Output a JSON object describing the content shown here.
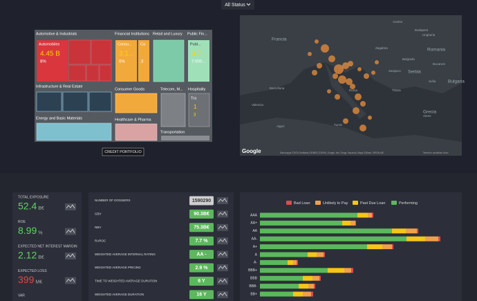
{
  "status_filter": "All Status",
  "treemap": {
    "groups": [
      "Automotive & Industrials",
      "Financial Institutions",
      "Retail and Luxury",
      "Public Fin...",
      "Infrastructure & Real Estate",
      "Consumer Goods",
      "Telecom, M...",
      "Hospitality",
      "Energy and Basic Materials",
      "Healthcare & Pharma",
      "Transportation"
    ],
    "tiles": [
      {
        "name": "Automobiles",
        "value": "4.45 B",
        "share": "8%"
      },
      {
        "name": "Consu...",
        "value": "3.1...",
        "share": "6%"
      },
      {
        "name": "Ca",
        "value": "3"
      },
      {
        "name": "Publ...",
        "value": "3.7...",
        "share": "7.000..."
      },
      {
        "name": "Tra",
        "value": "1",
        "share": "3"
      }
    ]
  },
  "button": "CREDIT PORTFOLIO",
  "map": {
    "labels": [
      "Francia",
      "Austria",
      "Ungheria",
      "Budapest",
      "Romania",
      "Bucarest",
      "Zagabria",
      "Belgrado",
      "Serbia",
      "Sarajevo",
      "Bulgaria",
      "Sofia",
      "Barcellona",
      "Roma",
      "Tirana",
      "Valencia",
      "Algeri",
      "Tunisi",
      "Grecia",
      "Atene"
    ],
    "logo": "Google",
    "attribution": "Dati mappa ©2020 GeoBasis-DE/BKG (©2009), Google, Inst. Geogr. Nacional, Mapa GISrael, ORION-ME",
    "terms": "Termini e condizioni d'uso"
  },
  "kpis": [
    {
      "label": "TOTAL EXPOSURE",
      "value": 52.4,
      "unit": "B€",
      "color": "#5fd35f"
    },
    {
      "label": "ROE",
      "value": 8.99,
      "unit": "%",
      "color": "#5fd35f"
    },
    {
      "label": "EXPECTED NET INTEREST MARGIN",
      "value": 2.12,
      "unit": "B€",
      "color": "#5fd35f"
    },
    {
      "label": "EXPECTED LOSS",
      "value": 399,
      "unit": "M€",
      "color": "#e04848"
    },
    {
      "label": "VAR"
    }
  ],
  "metrics": [
    {
      "label": "NUMBER OF DOSSIERS",
      "value": "1590290"
    },
    {
      "label": "GBV",
      "value": "90.3B€"
    },
    {
      "label": "NBV",
      "value": "75.3B€"
    },
    {
      "label": "RAROC",
      "value": "7.7 %"
    },
    {
      "label": "WEIGHTED AVERAGE INTERNAL RATING",
      "value": "AA -"
    },
    {
      "label": "WEIGHTED AVERAGE PRICING",
      "value": "2.9 %"
    },
    {
      "label": "TIME TO WEIGHTED AVERAGE DURATION",
      "value": "6 Y"
    },
    {
      "label": "WEIGHTED AVERAGE DURATION",
      "value": "16 Y"
    }
  ],
  "chart_data": {
    "type": "bar",
    "orientation": "horizontal",
    "stacked": true,
    "categories": [
      "AAA",
      "AA+",
      "AA",
      "AA-",
      "A+",
      "A",
      "A-",
      "BBB+",
      "BBB",
      "BBB-",
      "BB+"
    ],
    "xlim": [
      0,
      290
    ],
    "series": [
      {
        "name": "Bad Loan",
        "color": "#e04a4a",
        "values": [
          2,
          1,
          2,
          3,
          2,
          2,
          2,
          3,
          2,
          2,
          3
        ]
      },
      {
        "name": "Unlikely to Pay",
        "color": "#f0a04b",
        "values": [
          6,
          7,
          16,
          19,
          14,
          10,
          5,
          10,
          10,
          8,
          12
        ]
      },
      {
        "name": "Past Due Loan",
        "color": "#f5c518",
        "values": [
          15,
          12,
          20,
          27,
          22,
          13,
          8,
          24,
          14,
          14,
          14
        ]
      },
      {
        "name": "Performing",
        "color": "#5cb85c",
        "values": [
          141,
          119,
          191,
          212,
          155,
          69,
          40,
          98,
          62,
          56,
          48
        ]
      }
    ]
  }
}
